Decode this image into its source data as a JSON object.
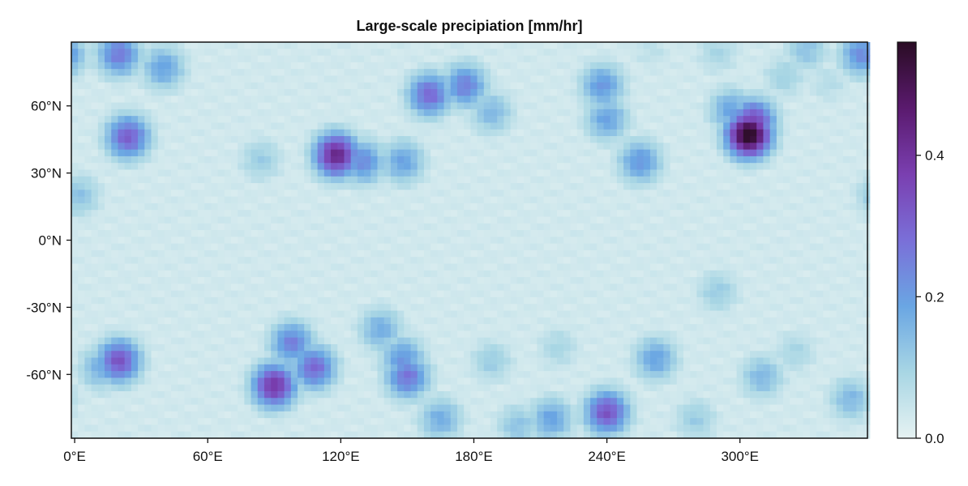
{
  "chart_data": {
    "type": "heatmap",
    "title": "Large-scale precipiation [mm/hr]",
    "xlabel": "",
    "ylabel": "",
    "xlim": [
      -1.5,
      357.5
    ],
    "ylim": [
      -88.5,
      88.5
    ],
    "x_ticks": [
      0,
      60,
      120,
      180,
      240,
      300
    ],
    "x_tick_labels": [
      "0°E",
      "60°E",
      "120°E",
      "180°E",
      "240°E",
      "300°E"
    ],
    "y_ticks": [
      60,
      30,
      0,
      -30,
      -60
    ],
    "y_tick_labels": [
      "60°N",
      "30°N",
      "0°N",
      "-30°N",
      "-60°N"
    ],
    "grid": false,
    "colorbar": {
      "range": [
        0.0,
        0.56
      ],
      "ticks": [
        0.0,
        0.2,
        0.4
      ],
      "tick_labels": [
        "0.0",
        "0.2",
        "0.4"
      ],
      "colors": [
        "#e6f2f2",
        "#a8d6e4",
        "#6aa6e3",
        "#7a6fd8",
        "#7a3fb0",
        "#5a1a6e",
        "#2a0c24"
      ]
    },
    "grid_resolution_deg": 3,
    "background_value": 0.02,
    "blobs": [
      {
        "lon": 20,
        "lat": 83,
        "value": 0.25
      },
      {
        "lon": 40,
        "lat": 77,
        "value": 0.18
      },
      {
        "lon": 355,
        "lat": 83,
        "value": 0.22
      },
      {
        "lon": 330,
        "lat": 85,
        "value": 0.12
      },
      {
        "lon": 290,
        "lat": 84,
        "value": 0.08
      },
      {
        "lon": 260,
        "lat": 85,
        "value": 0.05
      },
      {
        "lon": 320,
        "lat": 73,
        "value": 0.09
      },
      {
        "lon": 340,
        "lat": 70,
        "value": 0.06
      },
      {
        "lon": 24,
        "lat": 46,
        "value": 0.3
      },
      {
        "lon": 118,
        "lat": 38,
        "value": 0.42
      },
      {
        "lon": 130,
        "lat": 35,
        "value": 0.22
      },
      {
        "lon": 148,
        "lat": 35,
        "value": 0.18
      },
      {
        "lon": 160,
        "lat": 65,
        "value": 0.28
      },
      {
        "lon": 176,
        "lat": 69,
        "value": 0.24
      },
      {
        "lon": 188,
        "lat": 57,
        "value": 0.14
      },
      {
        "lon": 238,
        "lat": 69,
        "value": 0.2
      },
      {
        "lon": 240,
        "lat": 54,
        "value": 0.18
      },
      {
        "lon": 255,
        "lat": 35,
        "value": 0.2
      },
      {
        "lon": 304,
        "lat": 47,
        "value": 0.56
      },
      {
        "lon": 306,
        "lat": 53,
        "value": 0.35
      },
      {
        "lon": 296,
        "lat": 58,
        "value": 0.18
      },
      {
        "lon": 84,
        "lat": 36,
        "value": 0.1
      },
      {
        "lon": 2,
        "lat": 20,
        "value": 0.12
      },
      {
        "lon": 290,
        "lat": -23,
        "value": 0.1
      },
      {
        "lon": 20,
        "lat": -54,
        "value": 0.32
      },
      {
        "lon": 12,
        "lat": -57,
        "value": 0.16
      },
      {
        "lon": 98,
        "lat": -46,
        "value": 0.24
      },
      {
        "lon": 108,
        "lat": -57,
        "value": 0.28
      },
      {
        "lon": 90,
        "lat": -65,
        "value": 0.38
      },
      {
        "lon": 138,
        "lat": -40,
        "value": 0.16
      },
      {
        "lon": 148,
        "lat": -53,
        "value": 0.2
      },
      {
        "lon": 150,
        "lat": -61,
        "value": 0.26
      },
      {
        "lon": 188,
        "lat": -54,
        "value": 0.1
      },
      {
        "lon": 218,
        "lat": -48,
        "value": 0.08
      },
      {
        "lon": 262,
        "lat": -53,
        "value": 0.18
      },
      {
        "lon": 310,
        "lat": -61,
        "value": 0.14
      },
      {
        "lon": 325,
        "lat": -50,
        "value": 0.08
      },
      {
        "lon": 240,
        "lat": -77,
        "value": 0.32
      },
      {
        "lon": 215,
        "lat": -80,
        "value": 0.18
      },
      {
        "lon": 165,
        "lat": -80,
        "value": 0.16
      },
      {
        "lon": 350,
        "lat": -71,
        "value": 0.14
      },
      {
        "lon": 200,
        "lat": -83,
        "value": 0.12
      },
      {
        "lon": 280,
        "lat": -80,
        "value": 0.1
      }
    ]
  }
}
